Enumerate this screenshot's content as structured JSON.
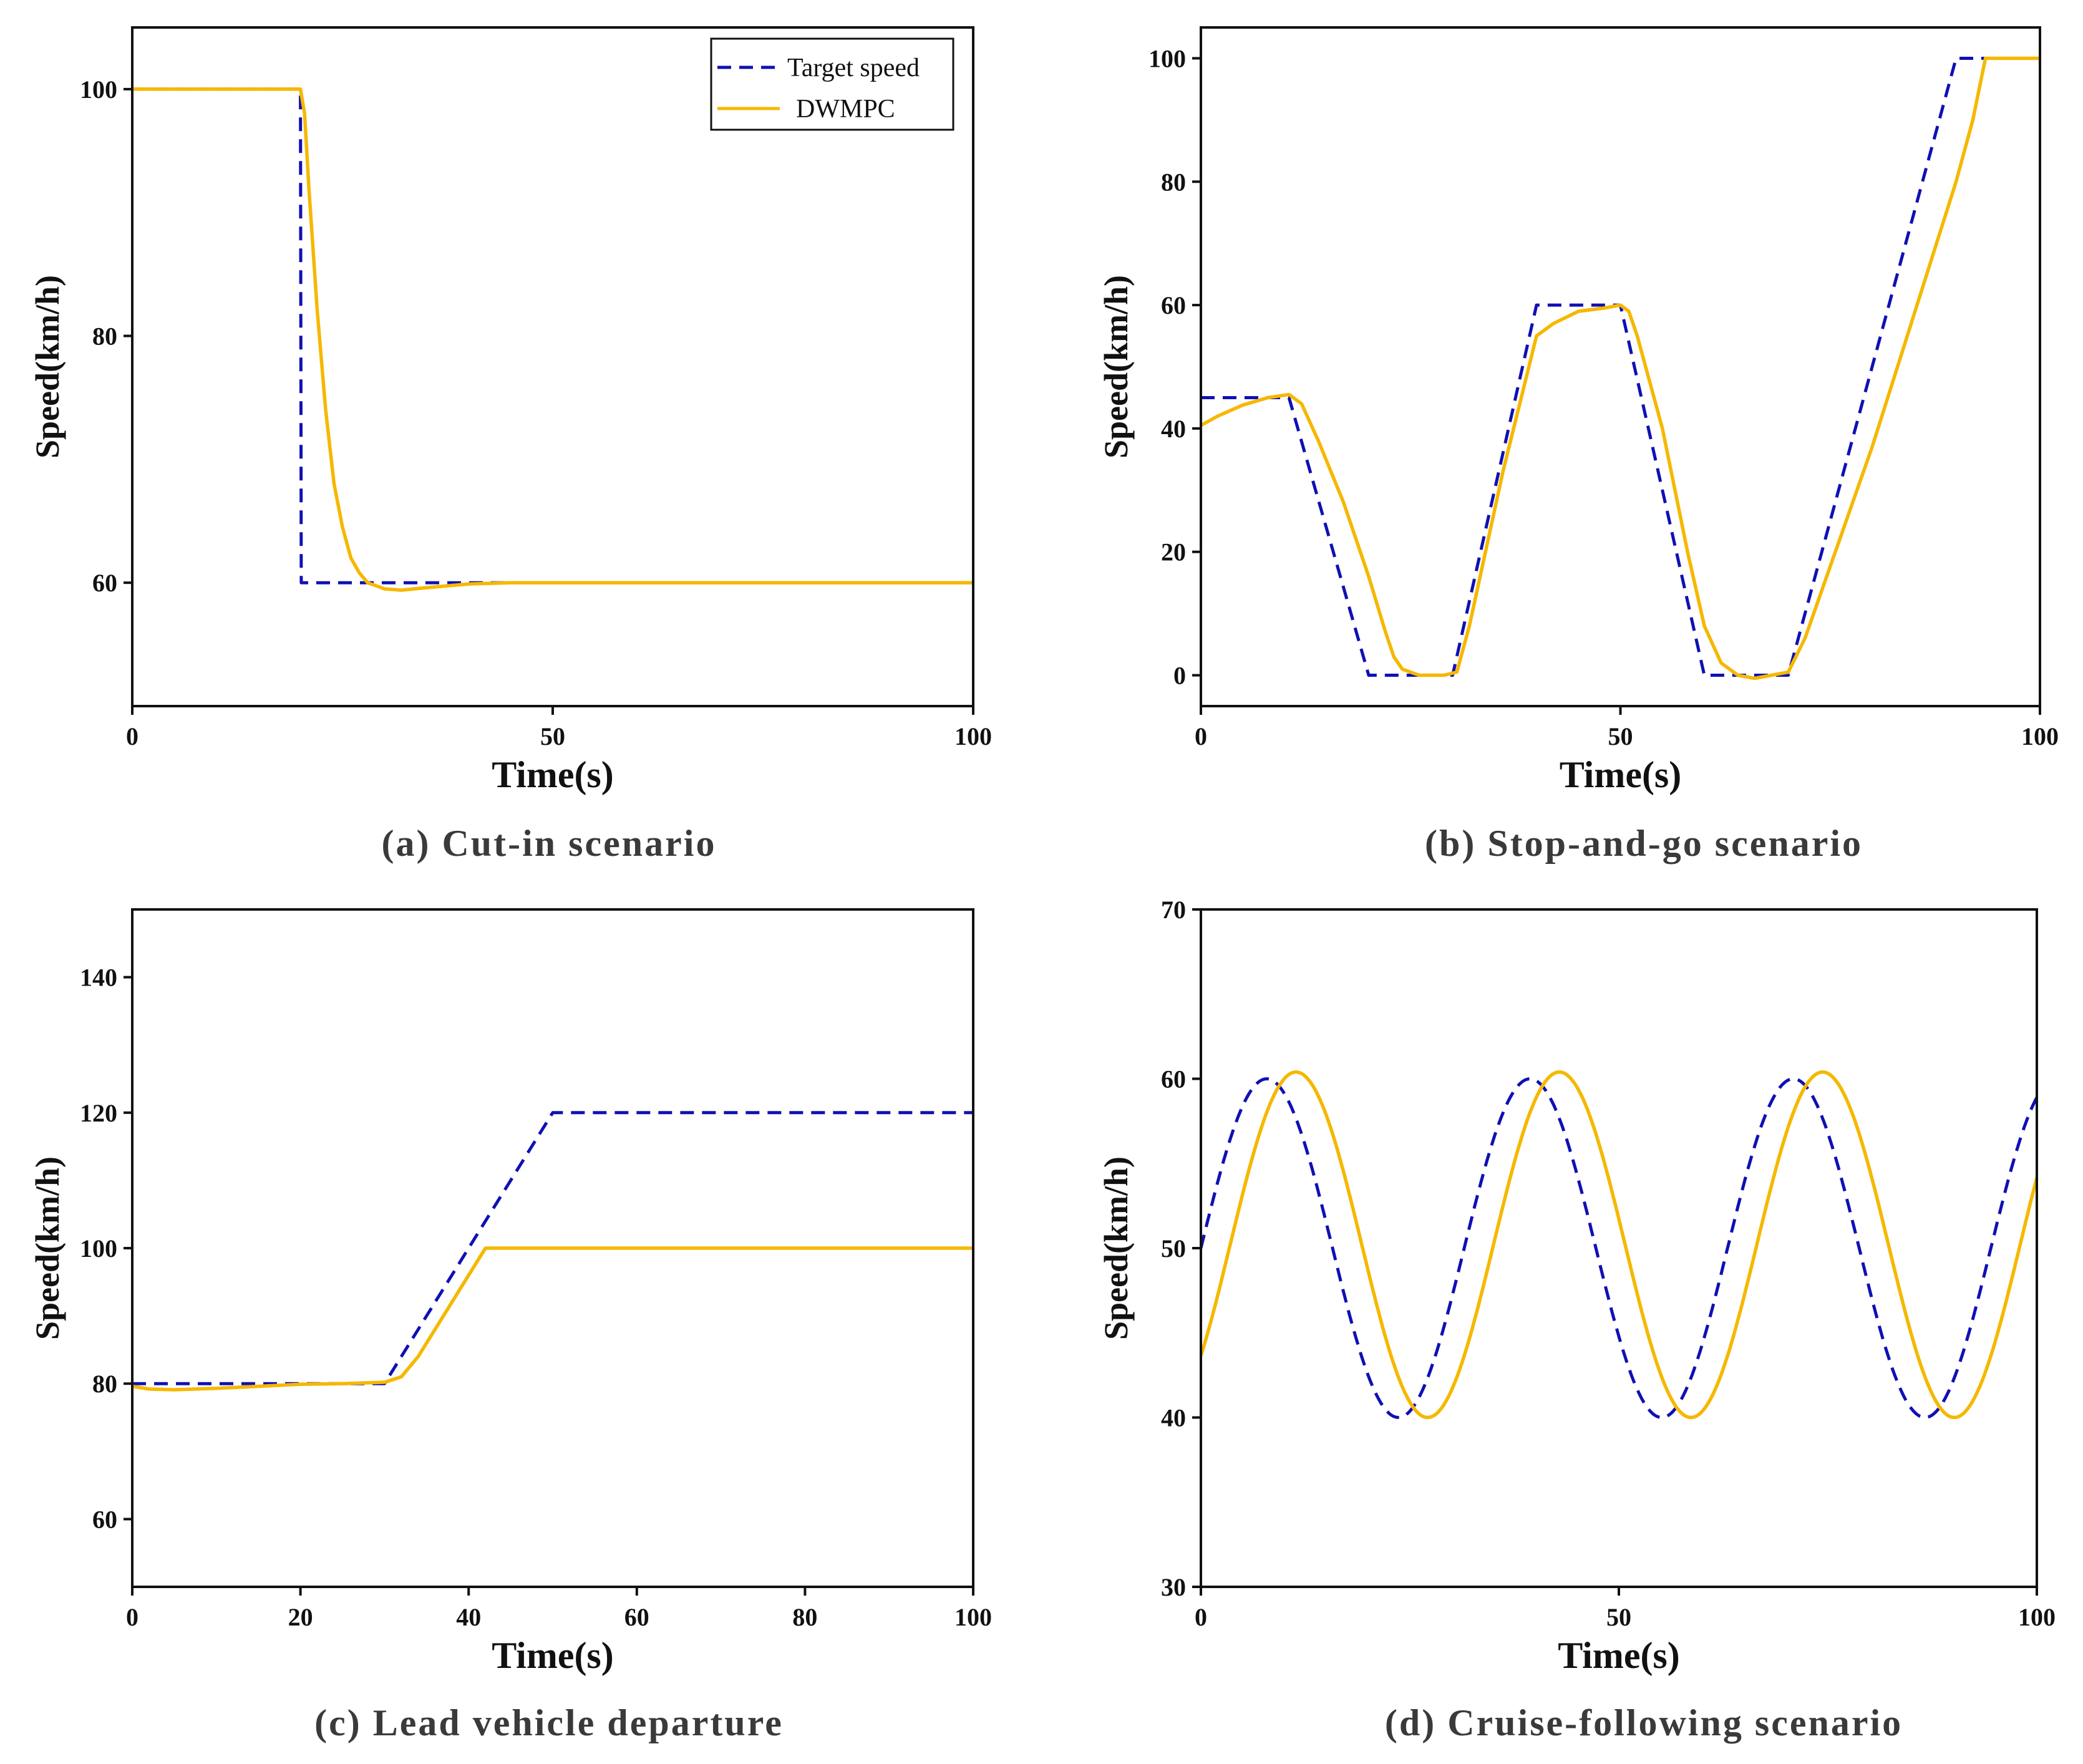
{
  "colors": {
    "target": "#1010b4",
    "dwmpc": "#f5b800",
    "axis": "#111111",
    "caption": "#3a3a3a"
  },
  "legend": {
    "target_label": "Target speed",
    "dwmpc_label": "DWMPC"
  },
  "chart_data": [
    {
      "type": "line",
      "caption": "(a) Cut-in scenario",
      "xlabel": "Time(s)",
      "ylabel": "Speed(km/h)",
      "xlim": [
        0,
        100
      ],
      "ylim": [
        50,
        105
      ],
      "xticks": [
        0,
        50,
        100
      ],
      "yticks": [
        60,
        80,
        100
      ],
      "legend": "top-right",
      "series": [
        {
          "name": "Target speed",
          "style": "dashed",
          "x": [
            0,
            20,
            20.1,
            45
          ],
          "y": [
            100,
            100,
            60,
            60
          ]
        },
        {
          "name": "DWMPC",
          "style": "solid",
          "x": [
            0,
            20,
            20.5,
            21,
            22,
            23,
            24,
            25,
            26,
            27,
            28,
            30,
            32,
            35,
            40,
            45,
            50,
            100
          ],
          "y": [
            100,
            100,
            98,
            92,
            82,
            74,
            68,
            64.5,
            62,
            60.8,
            60,
            59.5,
            59.4,
            59.6,
            59.9,
            60,
            60,
            60
          ]
        }
      ]
    },
    {
      "type": "line",
      "caption": "(b) Stop-and-go scenario",
      "xlabel": "Time(s)",
      "ylabel": "Speed(km/h)",
      "xlim": [
        0,
        100
      ],
      "ylim": [
        -5,
        105
      ],
      "xticks": [
        0,
        50,
        100
      ],
      "yticks": [
        0,
        20,
        40,
        60,
        80,
        100
      ],
      "series": [
        {
          "name": "Target speed",
          "style": "dashed",
          "x": [
            0,
            10.5,
            20,
            30,
            40,
            50,
            60,
            70,
            90,
            100
          ],
          "y": [
            45,
            45,
            0,
            0,
            60,
            60,
            0,
            0,
            100,
            100
          ]
        },
        {
          "name": "DWMPC",
          "style": "solid",
          "x": [
            0,
            2,
            5,
            8,
            10.5,
            12,
            14,
            17,
            20,
            22,
            23,
            24,
            26,
            29,
            30.5,
            32,
            36,
            40,
            42,
            45,
            48,
            50,
            51,
            52,
            55,
            58,
            60,
            62,
            64,
            66,
            68,
            70,
            72,
            80,
            90,
            92,
            93.5,
            100
          ],
          "y": [
            40.5,
            42,
            43.8,
            45,
            45.5,
            44,
            38,
            28,
            16,
            7,
            3,
            1,
            0,
            0,
            0.5,
            8,
            33,
            55,
            57,
            59,
            59.5,
            60,
            59,
            55,
            40,
            20,
            8,
            2,
            0,
            -0.5,
            0,
            0.5,
            6,
            37,
            80,
            90,
            100,
            100
          ]
        }
      ]
    },
    {
      "type": "line",
      "caption": "(c) Lead vehicle departure",
      "xlabel": "Time(s)",
      "ylabel": "Speed(km/h)",
      "xlim": [
        0,
        100
      ],
      "ylim": [
        50,
        150
      ],
      "xticks": [
        0,
        20,
        40,
        60,
        80,
        100
      ],
      "yticks": [
        60,
        80,
        100,
        120,
        140
      ],
      "series": [
        {
          "name": "Target speed",
          "style": "dashed",
          "x": [
            0,
            30,
            50,
            100
          ],
          "y": [
            80,
            80,
            120,
            120
          ]
        },
        {
          "name": "DWMPC",
          "style": "solid",
          "x": [
            0,
            2,
            5,
            10,
            15,
            20,
            25,
            30,
            32,
            34,
            36,
            38,
            40,
            41,
            42,
            100
          ],
          "y": [
            79.6,
            79.2,
            79.1,
            79.3,
            79.6,
            79.9,
            80,
            80.2,
            81,
            84,
            88,
            92,
            96,
            98,
            100,
            100
          ]
        }
      ]
    },
    {
      "type": "line",
      "caption": "(d) Cruise-following scenario",
      "xlabel": "Time(s)",
      "ylabel": "Speed(km/h)",
      "xlim": [
        0,
        100
      ],
      "ylim": [
        30,
        70
      ],
      "xticks": [
        0,
        50,
        100
      ],
      "yticks": [
        30,
        40,
        50,
        60,
        70
      ],
      "series": [
        {
          "name": "Target speed",
          "style": "dashed",
          "generator": "sine",
          "mean": 50,
          "amplitude": 10,
          "period": 31.5,
          "phase_shift": 0
        },
        {
          "name": "DWMPC",
          "style": "solid",
          "generator": "sine",
          "mean": 50.2,
          "amplitude": 10.2,
          "period": 31.5,
          "phase_shift": 3.5
        }
      ]
    }
  ]
}
